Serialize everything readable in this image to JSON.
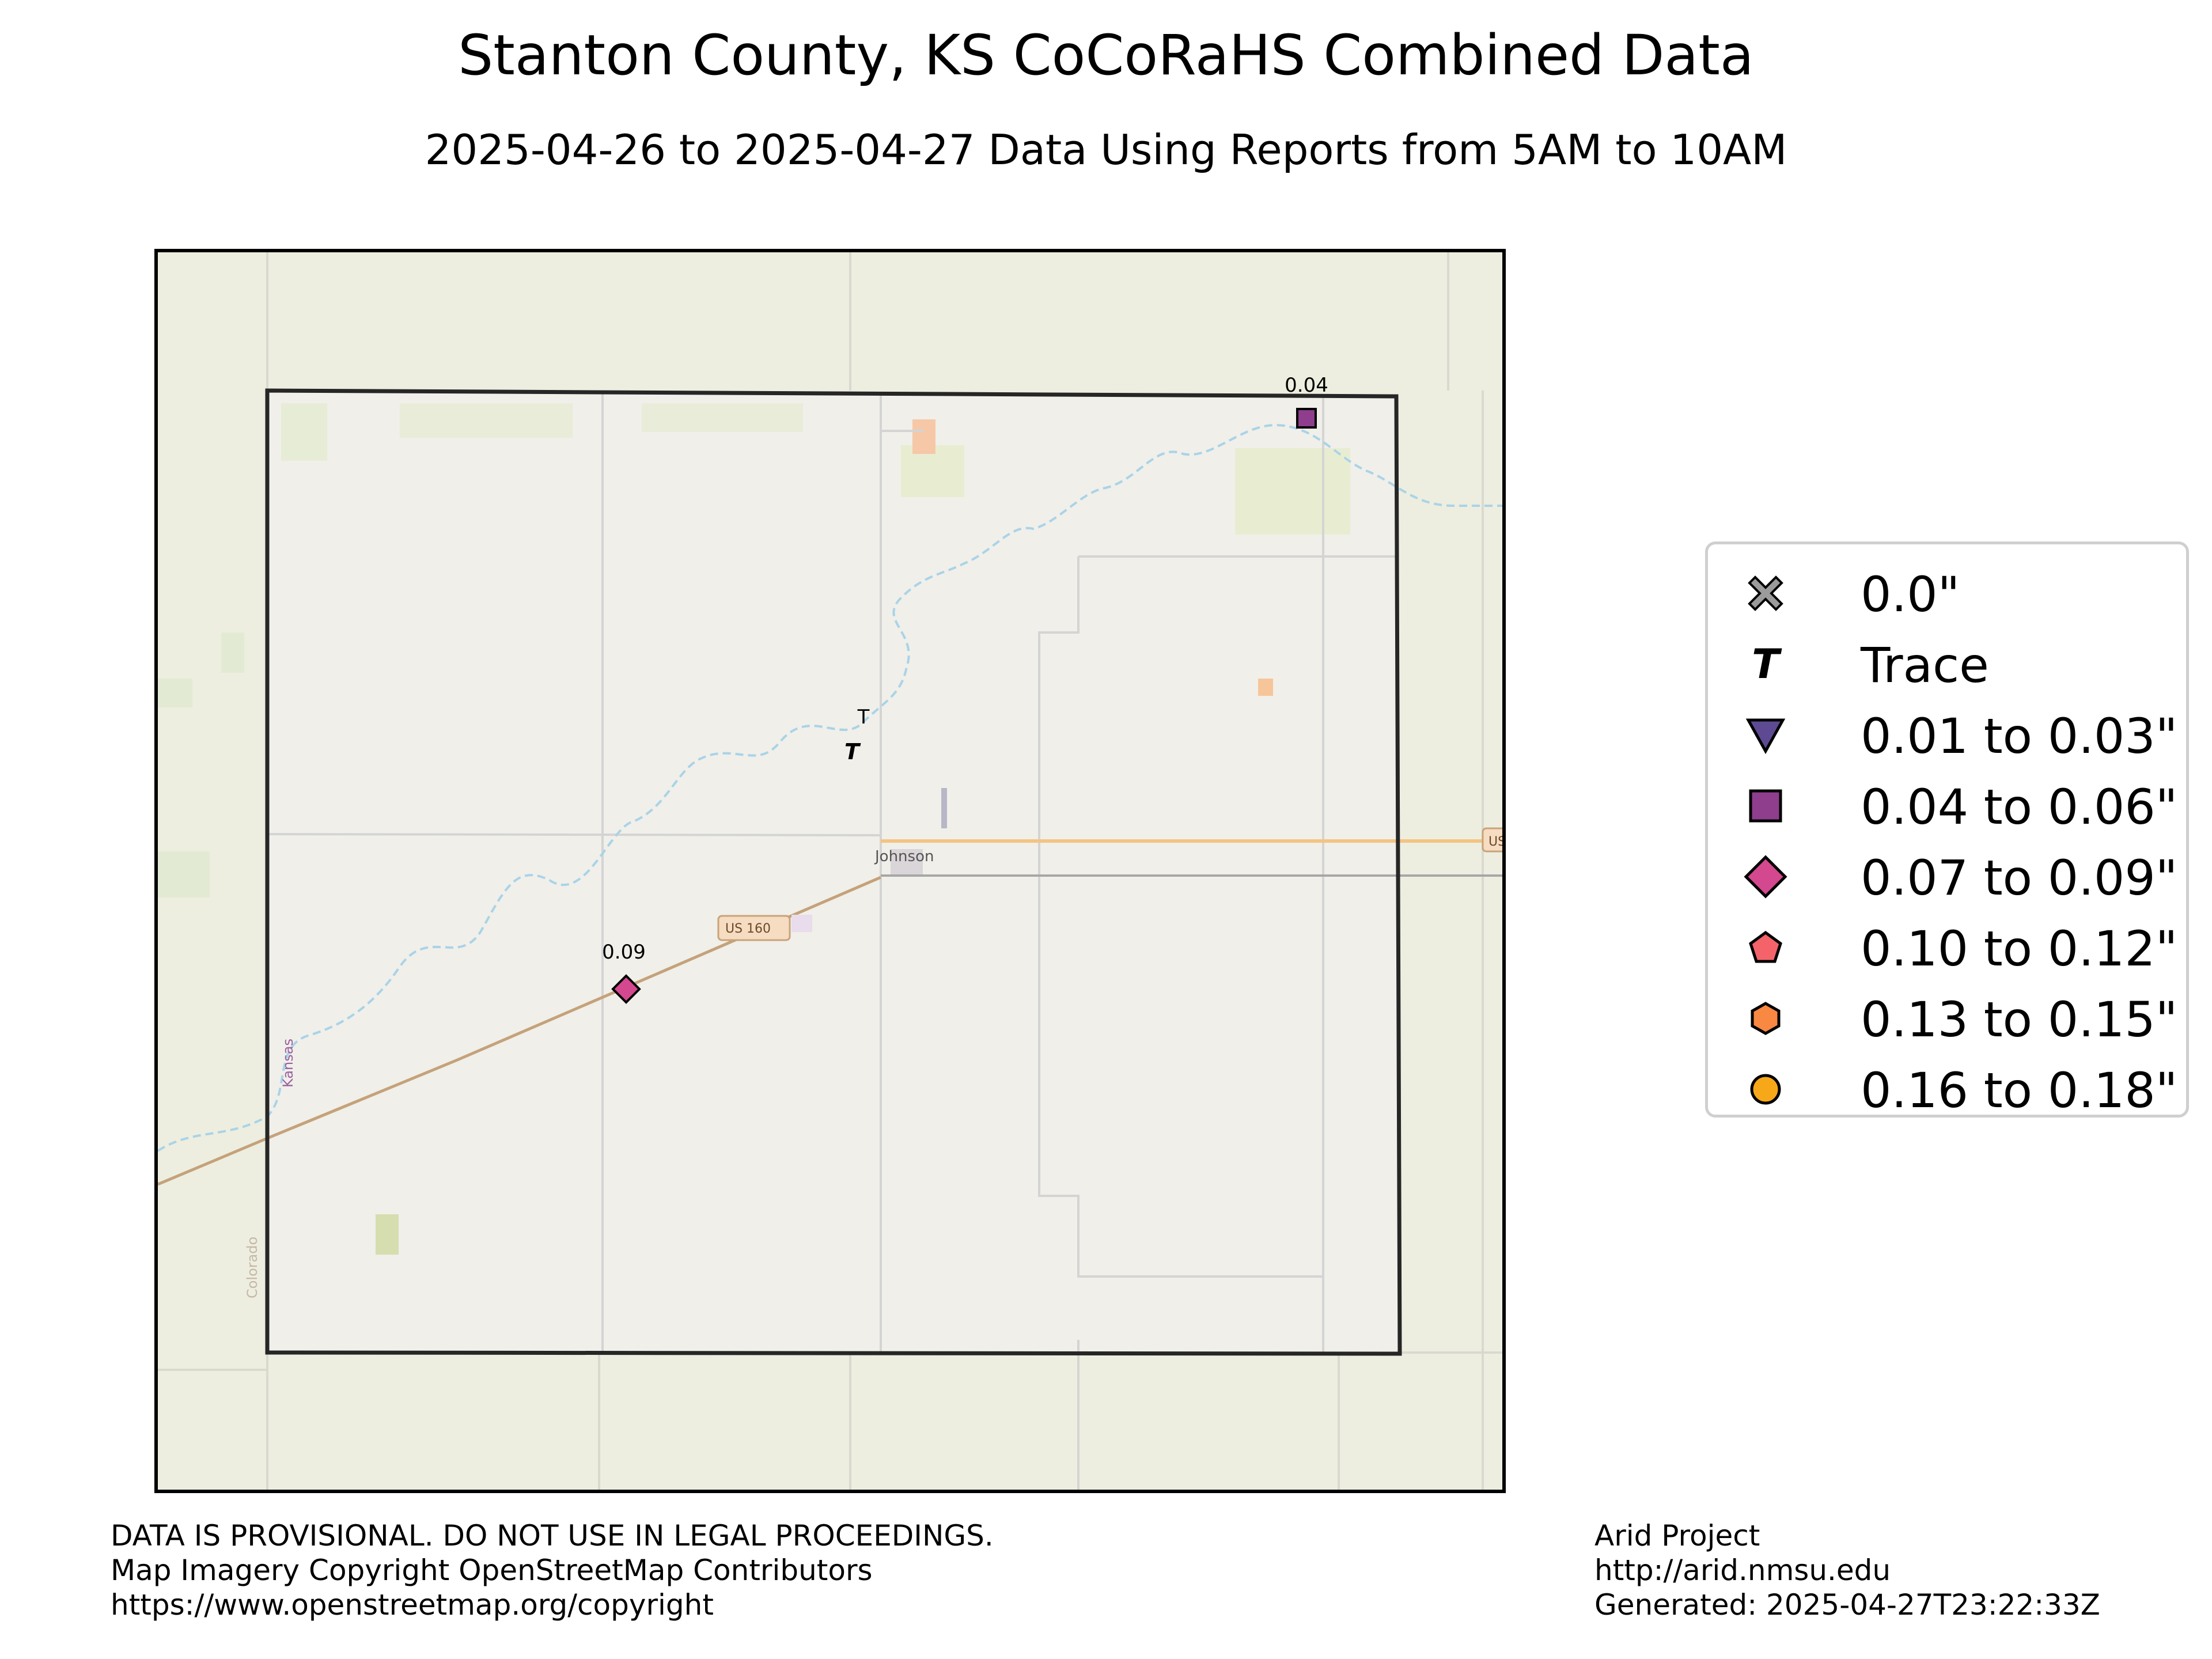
{
  "title": "Stanton County, KS CoCoRaHS Combined Data",
  "subtitle": "2025-04-26 to 2025-04-27 Data Using Reports from 5AM to 10AM",
  "map": {
    "town_label": "Johnson",
    "highway_label": "US 160",
    "state_label_ks": "Kansas",
    "state_label_co": "Colorado",
    "highway_edge_label": "US",
    "colors": {
      "land": "#edeedf",
      "county_fill": "#f0efe9",
      "county_border": "#262626",
      "river": "#a9d3e8",
      "highway": "#c4a27a",
      "highway_east": "#f4c481",
      "roads": "#d2d2d2"
    }
  },
  "stations": [
    {
      "id": "trace",
      "category": "Trace",
      "label": "T",
      "symbol": "T"
    },
    {
      "id": "north-east",
      "category": "0.04 to 0.06\"",
      "label": "0.04",
      "value": 0.04,
      "symbol": "square",
      "color": "#8e3e8d"
    },
    {
      "id": "south-west",
      "category": "0.07 to 0.09\"",
      "label": "0.09",
      "value": 0.09,
      "symbol": "diamond",
      "color": "#d3488f"
    }
  ],
  "legend": [
    {
      "label": "0.0\"",
      "symbol": "x-icon",
      "color": "#9b9b9b"
    },
    {
      "label": "Trace",
      "symbol": "trace-t-icon",
      "color": "#000000"
    },
    {
      "label": "0.01 to 0.03\"",
      "symbol": "triangle-down-icon",
      "color": "#5e4a93"
    },
    {
      "label": "0.04 to 0.06\"",
      "symbol": "square-icon",
      "color": "#8e3e8d"
    },
    {
      "label": "0.07 to 0.09\"",
      "symbol": "diamond-icon",
      "color": "#d3488f"
    },
    {
      "label": "0.10 to 0.12\"",
      "symbol": "pentagon-icon",
      "color": "#f4636a"
    },
    {
      "label": "0.13 to 0.15\"",
      "symbol": "hexagon-icon",
      "color": "#f98843"
    },
    {
      "label": "0.16 to 0.18\"",
      "symbol": "circle-icon",
      "color": "#f6a819"
    }
  ],
  "footer": {
    "left": [
      "DATA IS PROVISIONAL. DO NOT USE IN LEGAL PROCEEDINGS.",
      "Map Imagery Copyright OpenStreetMap Contributors",
      "https://www.openstreetmap.org/copyright"
    ],
    "right": [
      "Arid Project",
      "http://arid.nmsu.edu",
      "Generated: 2025-04-27T23:22:33Z"
    ]
  }
}
